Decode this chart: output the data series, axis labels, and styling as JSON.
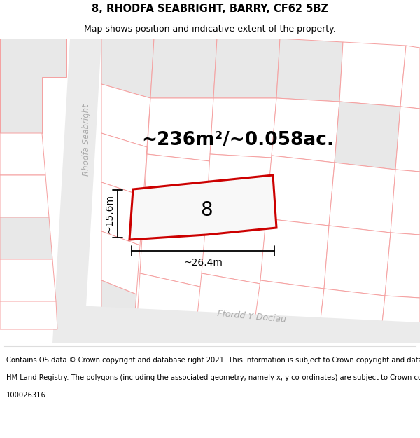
{
  "title": "8, RHODFA SEABRIGHT, BARRY, CF62 5BZ",
  "subtitle": "Map shows position and indicative extent of the property.",
  "area_text": "~236m²/~0.058ac.",
  "number_label": "8",
  "width_label": "~26.4m",
  "height_label": "~15.6m",
  "street_label_1": "Rhodfa Seabright",
  "street_label_2": "Ffordd Y Dociau",
  "building_stroke": "#f5a0a0",
  "building_fill": "#ffffff",
  "gray_fill": "#e8e8e8",
  "highlight_stroke": "#cc0000",
  "highlight_fill": "#f8f8f8",
  "map_bg": "#f7f7f7",
  "title_fontsize": 10.5,
  "subtitle_fontsize": 9,
  "area_fontsize": 19,
  "number_fontsize": 20,
  "label_fontsize": 10,
  "street_fontsize": 8.5,
  "footer_fontsize": 7.2,
  "footer_text_lines": [
    "Contains OS data © Crown copyright and database right 2021. This information is subject to Crown copyright and database rights 2023 and is reproduced with the permission of",
    "HM Land Registry. The polygons (including the associated geometry, namely x, y co-ordinates) are subject to Crown copyright and database rights 2023 Ordnance Survey",
    "100026316."
  ]
}
